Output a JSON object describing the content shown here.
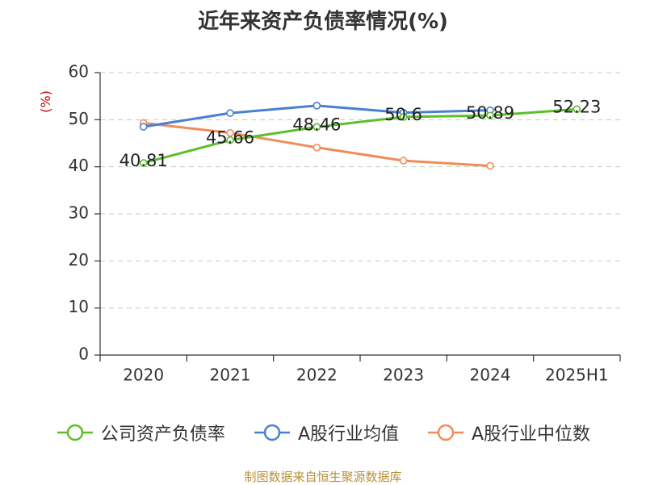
{
  "chart_data": {
    "type": "line",
    "title": "近年来资产负债率情况(%)",
    "ylabel": "(%)",
    "categories": [
      "2020",
      "2021",
      "2022",
      "2023",
      "2024",
      "2025H1"
    ],
    "ylim": [
      0,
      60
    ],
    "yticks": [
      0,
      10,
      20,
      30,
      40,
      50,
      60
    ],
    "grid": true,
    "legend_position": "bottom",
    "series": [
      {
        "name": "公司资产负债率",
        "color": "#5cbf2a",
        "values": [
          40.81,
          45.66,
          48.46,
          50.6,
          50.89,
          52.23
        ],
        "labels": [
          "40.81",
          "45.66",
          "48.46",
          "50.6",
          "50.89",
          "52.23"
        ]
      },
      {
        "name": "A股行业均值",
        "color": "#4a7fd4",
        "values": [
          48.5,
          51.4,
          53.0,
          51.5,
          52.0,
          null
        ]
      },
      {
        "name": "A股行业中位数",
        "color": "#f08c5a",
        "values": [
          49.3,
          47.2,
          44.1,
          41.3,
          40.2,
          null
        ]
      }
    ]
  },
  "source_text": "制图数据来自恒生聚源数据库"
}
